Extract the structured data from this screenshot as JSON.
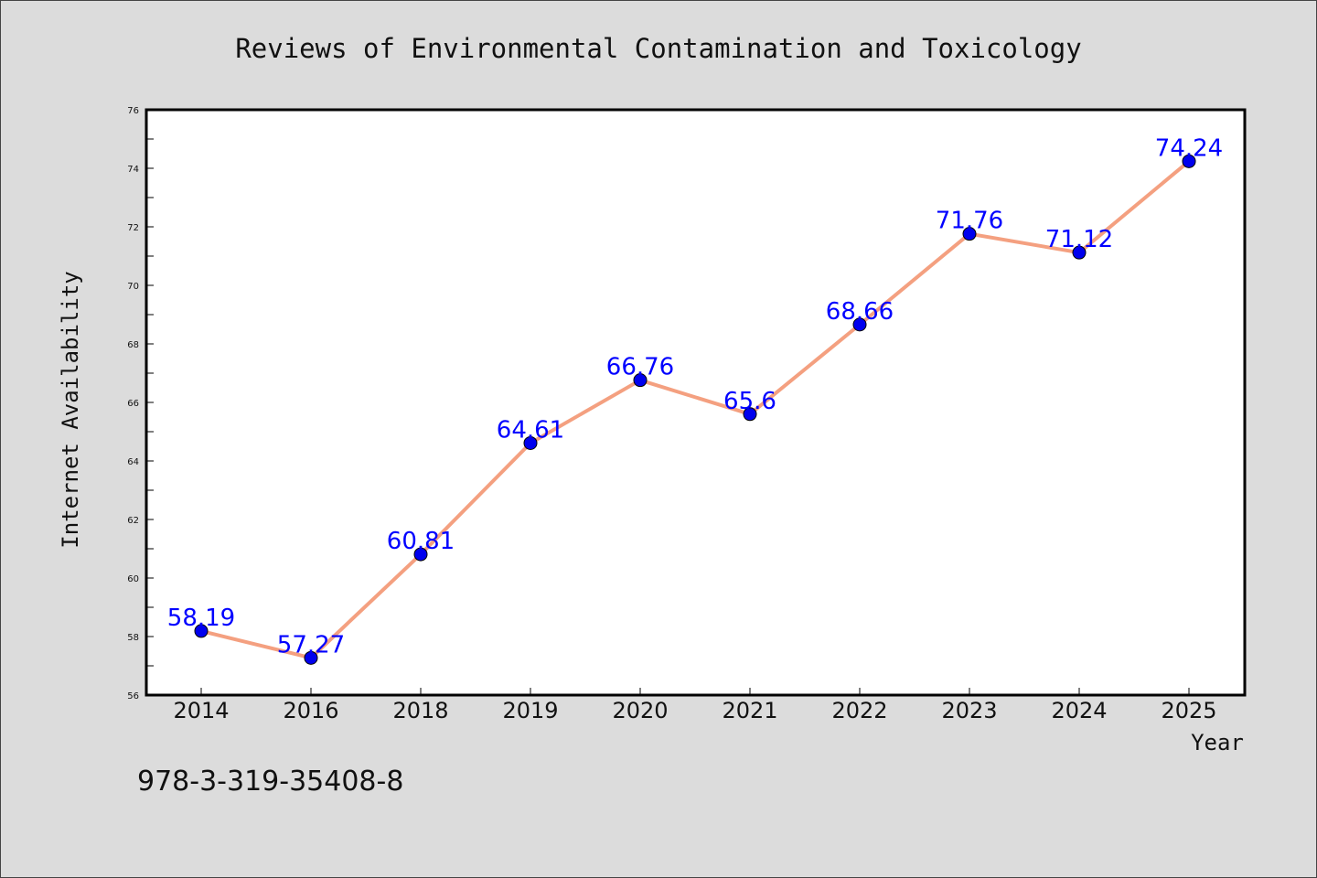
{
  "chart_data": {
    "type": "line",
    "title": "Reviews of Environmental Contamination and Toxicology",
    "xlabel": "Year",
    "ylabel": "Internet Availability",
    "categories": [
      "2014",
      "2016",
      "2018",
      "2019",
      "2020",
      "2021",
      "2022",
      "2023",
      "2024",
      "2025"
    ],
    "series": [
      {
        "values": [
          58.19,
          57.27,
          60.81,
          64.61,
          66.76,
          65.6,
          68.66,
          71.76,
          71.12,
          74.24
        ],
        "data_labels": [
          "58.19",
          "57.27",
          "60.81",
          "64.61",
          "66.76",
          "65.6",
          "68.66",
          "71.76",
          "71.12",
          "74.24"
        ],
        "line_color": "#f4a080",
        "marker_color": "#0000ee"
      }
    ],
    "ylim": [
      56,
      76
    ],
    "yticks": [
      "56",
      "58",
      "60",
      "62",
      "64",
      "66",
      "68",
      "70",
      "72",
      "74",
      "76"
    ],
    "grid": false,
    "legend": "none",
    "label_color": "#0000ff"
  },
  "footer": {
    "isbn": "978-3-319-35408-8"
  },
  "colors": {
    "background": "#dcdcdc",
    "plot_background": "#ffffff"
  }
}
